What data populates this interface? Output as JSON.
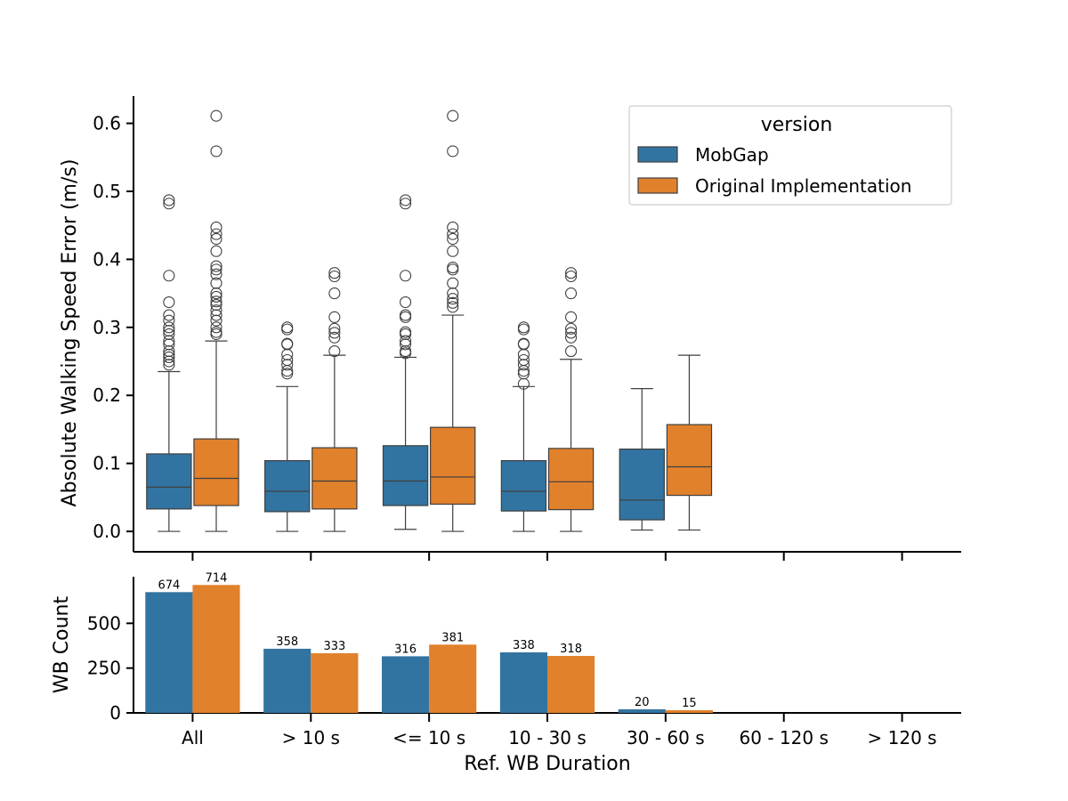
{
  "chart_data": [
    {
      "type": "box",
      "ylabel": "Absolute Walking Speed Error (m/s)",
      "xlabel": "",
      "ylim": [
        -0.03,
        0.64
      ],
      "yticks": [
        "0.0",
        "0.1",
        "0.2",
        "0.3",
        "0.4",
        "0.5",
        "0.6"
      ],
      "ytick_values": [
        0.0,
        0.1,
        0.2,
        0.3,
        0.4,
        0.5,
        0.6
      ],
      "categories": [
        "All",
        "> 10 s",
        "<= 10 s",
        "10 - 30 s",
        "30 - 60 s",
        "60 - 120 s",
        "> 120 s"
      ],
      "legend": {
        "title": "version",
        "position": "top-right"
      },
      "series": [
        {
          "name": "MobGap",
          "color": "#3274a1",
          "boxes": [
            {
              "min": 0.0,
              "q1": 0.033,
              "median": 0.065,
              "q3": 0.114,
              "max": 0.235,
              "outliers": [
                0.245,
                0.25,
                0.256,
                0.26,
                0.265,
                0.275,
                0.28,
                0.29,
                0.295,
                0.3,
                0.31,
                0.318,
                0.337,
                0.376,
                0.482,
                0.487
              ]
            },
            {
              "min": 0.0,
              "q1": 0.029,
              "median": 0.059,
              "q3": 0.104,
              "max": 0.213,
              "outliers": [
                0.232,
                0.236,
                0.245,
                0.252,
                0.26,
                0.275,
                0.276,
                0.297,
                0.3
              ]
            },
            {
              "min": 0.003,
              "q1": 0.038,
              "median": 0.074,
              "q3": 0.126,
              "max": 0.256,
              "outliers": [
                0.262,
                0.265,
                0.275,
                0.28,
                0.29,
                0.293,
                0.315,
                0.318,
                0.337,
                0.376,
                0.482,
                0.487
              ]
            },
            {
              "min": 0.0,
              "q1": 0.03,
              "median": 0.059,
              "q3": 0.104,
              "max": 0.213,
              "outliers": [
                0.217,
                0.232,
                0.236,
                0.245,
                0.252,
                0.26,
                0.275,
                0.276,
                0.297,
                0.3
              ]
            },
            {
              "min": 0.002,
              "q1": 0.017,
              "median": 0.046,
              "q3": 0.121,
              "max": 0.21,
              "outliers": []
            },
            null,
            null
          ]
        },
        {
          "name": "Original Implementation",
          "color": "#e1812c",
          "boxes": [
            {
              "min": 0.0,
              "q1": 0.038,
              "median": 0.078,
              "q3": 0.136,
              "max": 0.28,
              "outliers": [
                0.29,
                0.293,
                0.3,
                0.31,
                0.318,
                0.325,
                0.333,
                0.338,
                0.345,
                0.35,
                0.365,
                0.378,
                0.385,
                0.39,
                0.412,
                0.43,
                0.437,
                0.447,
                0.559,
                0.611
              ]
            },
            {
              "min": 0.0,
              "q1": 0.033,
              "median": 0.074,
              "q3": 0.123,
              "max": 0.259,
              "outliers": [
                0.265,
                0.285,
                0.292,
                0.298,
                0.315,
                0.35,
                0.375,
                0.38
              ]
            },
            {
              "min": 0.0,
              "q1": 0.04,
              "median": 0.08,
              "q3": 0.153,
              "max": 0.318,
              "outliers": [
                0.33,
                0.336,
                0.342,
                0.35,
                0.365,
                0.385,
                0.388,
                0.412,
                0.43,
                0.437,
                0.447,
                0.559,
                0.611
              ]
            },
            {
              "min": 0.0,
              "q1": 0.032,
              "median": 0.073,
              "q3": 0.122,
              "max": 0.253,
              "outliers": [
                0.265,
                0.285,
                0.292,
                0.298,
                0.315,
                0.35,
                0.375,
                0.38
              ]
            },
            {
              "min": 0.002,
              "q1": 0.053,
              "median": 0.095,
              "q3": 0.157,
              "max": 0.259,
              "outliers": []
            },
            null,
            null
          ]
        }
      ]
    },
    {
      "type": "bar",
      "ylabel": "WB Count",
      "xlabel": "Ref. WB Duration",
      "ylim": [
        0,
        760
      ],
      "yticks": [
        "0",
        "250",
        "500"
      ],
      "ytick_values": [
        0,
        250,
        500
      ],
      "categories": [
        "All",
        "> 10 s",
        "<= 10 s",
        "10 - 30 s",
        "30 - 60 s",
        "60 - 120 s",
        "> 120 s"
      ],
      "series": [
        {
          "name": "MobGap",
          "color": "#3274a1",
          "values": [
            674,
            358,
            316,
            338,
            20,
            null,
            null
          ],
          "labels": [
            "674",
            "358",
            "316",
            "338",
            "20",
            "",
            ""
          ]
        },
        {
          "name": "Original Implementation",
          "color": "#e1812c",
          "values": [
            714,
            333,
            381,
            318,
            15,
            null,
            null
          ],
          "labels": [
            "714",
            "333",
            "381",
            "318",
            "15",
            "",
            ""
          ]
        }
      ]
    }
  ]
}
